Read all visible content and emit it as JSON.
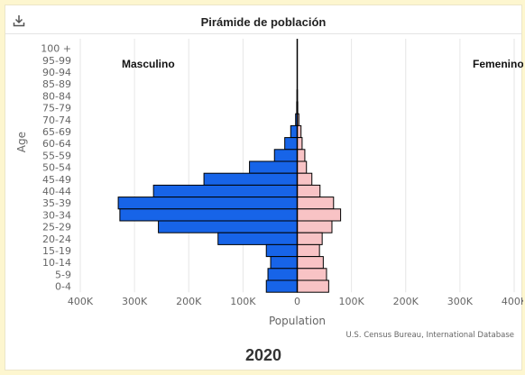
{
  "icons": {
    "download": "download-icon"
  },
  "chart_data": {
    "type": "bar",
    "orientation": "horizontal-population-pyramid",
    "title": "Pirámide de población",
    "subtitle_year": "2020",
    "xlabel": "Population",
    "ylabel": "Age",
    "credit": "U.S. Census Bureau, International Database",
    "xlim": [
      -400000,
      400000
    ],
    "x_ticks": [
      -400000,
      -300000,
      -200000,
      -100000,
      0,
      100000,
      200000,
      300000,
      400000
    ],
    "x_tick_labels": [
      "400K",
      "300K",
      "200K",
      "100K",
      "0",
      "100K",
      "200K",
      "300K",
      "400K"
    ],
    "grid": true,
    "categories": [
      "100 +",
      "95-99",
      "90-94",
      "85-89",
      "80-84",
      "75-79",
      "70-74",
      "65-69",
      "60-64",
      "55-59",
      "50-54",
      "45-49",
      "40-44",
      "35-39",
      "30-34",
      "25-29",
      "20-24",
      "15-19",
      "10-14",
      "5-9",
      "0-4"
    ],
    "series": [
      {
        "name": "Masculino",
        "color": "#1764e8",
        "values": [
          0,
          0,
          0,
          0,
          500,
          1000,
          3000,
          12000,
          23000,
          42000,
          88000,
          172000,
          265000,
          330000,
          327000,
          256000,
          146000,
          57000,
          49000,
          54000,
          57000
        ]
      },
      {
        "name": "Femenino",
        "color": "#f8c3c5",
        "values": [
          0,
          0,
          0,
          0,
          500,
          1000,
          3000,
          7000,
          9000,
          14000,
          17000,
          27000,
          42000,
          67000,
          80000,
          64000,
          46000,
          41000,
          48000,
          54000,
          58000
        ]
      }
    ]
  }
}
